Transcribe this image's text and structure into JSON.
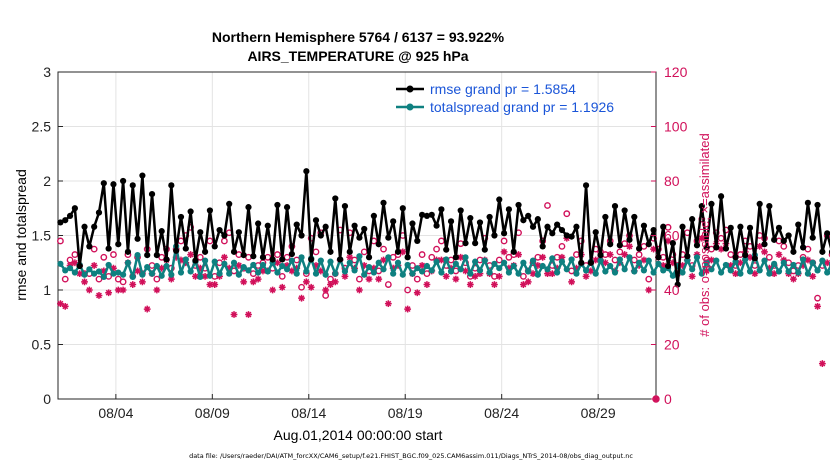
{
  "chart_data": {
    "type": "line",
    "title_line1": "Northern Hemisphere 5764 / 6137 = 93.922%",
    "title_line2": "AIRS_TEMPERATURE @ 925 hPa",
    "xlabel": "Aug.01,2014 00:00:00 start",
    "ylabel_left": "rmse and totalspread",
    "ylabel_right": "# of obs: o=possible; ×=assimilated",
    "ylim_left": [
      0,
      3
    ],
    "ylim_right": [
      0,
      120
    ],
    "xlim_days": [
      1,
      32
    ],
    "yticks_left": [
      "0",
      "0.5",
      "1",
      "1.5",
      "2",
      "2.5",
      "3"
    ],
    "yticks_right": [
      "0",
      "20",
      "40",
      "60",
      "80",
      "100",
      "120"
    ],
    "xticks": [
      {
        "day": 4,
        "label": "08/04"
      },
      {
        "day": 9,
        "label": "08/09"
      },
      {
        "day": 14,
        "label": "08/14"
      },
      {
        "day": 19,
        "label": "08/19"
      },
      {
        "day": 24,
        "label": "08/24"
      },
      {
        "day": 29,
        "label": "08/29"
      }
    ],
    "grid": true,
    "legend_position": "top-right",
    "footer": "data file: /Users/raeder/DAI/ATM_forcXX/CAM6_setup/f.e21.FHIST_BGC.f09_025.CAM6assim.011/Diags_NTrS_2014-08/obs_diag_output.nc",
    "colors": {
      "rmse": "#000000",
      "spread": "#0e8080",
      "obs": "#d1105a",
      "legend_text": "#1a55d8",
      "grid": "#e3e3e3"
    },
    "series": [
      {
        "name": "rmse grand pr = 1.5854",
        "axis": "left",
        "start_day": 1.125,
        "step_days": 0.25,
        "values": [
          1.62,
          1.64,
          1.68,
          1.75,
          1.22,
          1.58,
          1.4,
          1.58,
          1.71,
          1.98,
          1.38,
          1.97,
          1.42,
          2.0,
          1.35,
          1.96,
          1.47,
          2.05,
          1.32,
          1.88,
          1.32,
          1.54,
          1.28,
          1.96,
          1.36,
          1.67,
          1.38,
          1.72,
          1.27,
          1.53,
          1.35,
          1.73,
          1.4,
          1.55,
          1.5,
          1.79,
          1.35,
          1.53,
          1.32,
          1.76,
          1.31,
          1.61,
          1.3,
          1.59,
          1.28,
          1.78,
          1.28,
          1.76,
          1.33,
          1.6,
          1.5,
          2.09,
          1.28,
          1.64,
          1.5,
          1.58,
          1.35,
          1.84,
          1.28,
          1.77,
          1.35,
          1.59,
          1.48,
          1.56,
          1.3,
          1.68,
          1.42,
          1.8,
          1.48,
          1.63,
          1.35,
          1.75,
          1.3,
          1.61,
          1.45,
          1.69,
          1.68,
          1.69,
          1.59,
          1.74,
          1.37,
          1.63,
          1.3,
          1.73,
          1.43,
          1.66,
          1.43,
          1.62,
          1.37,
          1.67,
          1.5,
          1.83,
          1.52,
          1.74,
          1.35,
          1.78,
          1.64,
          1.68,
          1.58,
          1.65,
          1.4,
          1.58,
          1.52,
          1.6,
          1.55,
          1.5,
          1.49,
          1.58,
          1.25,
          1.96,
          1.25,
          1.53,
          1.32,
          1.67,
          1.42,
          1.77,
          1.41,
          1.73,
          1.46,
          1.67,
          1.38,
          1.59,
          1.42,
          1.55,
          1.3,
          1.58,
          1.22,
          1.43,
          1.05,
          1.58,
          1.31,
          1.65,
          1.41,
          1.77,
          1.39,
          1.79,
          1.39,
          1.86,
          1.38,
          1.57,
          1.3,
          1.58,
          1.32,
          1.57,
          1.29,
          1.79,
          1.42,
          1.77,
          1.46,
          1.57,
          1.45,
          1.5,
          1.35,
          1.6,
          1.39,
          1.8,
          1.48,
          1.78,
          1.35,
          1.52,
          1.35,
          1.58,
          1.32,
          1.72,
          1.37,
          1.62,
          1.48,
          1.62,
          1.4,
          1.45,
          1.27,
          1.56,
          1.35,
          1.58,
          1.45,
          1.65,
          1.28,
          1.52,
          1.27,
          1.5,
          1.27,
          1.45,
          1.32,
          1.62,
          1.35,
          1.6,
          1.45,
          1.67,
          1.35,
          1.38,
          1.42,
          1.6,
          1.35,
          1.55,
          1.26,
          1.48,
          1.27,
          1.44,
          1.24,
          1.32,
          1.22,
          1.25
        ]
      },
      {
        "name": "totalspread grand pr = 1.1926",
        "axis": "left",
        "start_day": 1.125,
        "step_days": 0.25,
        "values": [
          1.24,
          1.18,
          1.2,
          1.16,
          1.23,
          1.14,
          1.19,
          1.15,
          1.17,
          1.12,
          1.23,
          1.15,
          1.16,
          1.14,
          1.25,
          1.12,
          1.32,
          1.14,
          1.21,
          1.15,
          1.22,
          1.13,
          1.22,
          1.14,
          1.4,
          1.16,
          1.28,
          1.17,
          1.26,
          1.12,
          1.27,
          1.13,
          1.26,
          1.15,
          1.24,
          1.15,
          1.25,
          1.14,
          1.21,
          1.18,
          1.23,
          1.16,
          1.23,
          1.17,
          1.25,
          1.16,
          1.22,
          1.19,
          1.27,
          1.15,
          1.3,
          1.17,
          1.29,
          1.15,
          1.27,
          1.14,
          1.26,
          1.15,
          1.28,
          1.17,
          1.25,
          1.18,
          1.31,
          1.14,
          1.21,
          1.16,
          1.25,
          1.19,
          1.3,
          1.15,
          1.25,
          1.14,
          1.23,
          1.15,
          1.2,
          1.17,
          1.22,
          1.18,
          1.26,
          1.16,
          1.28,
          1.17,
          1.24,
          1.19,
          1.3,
          1.15,
          1.26,
          1.18,
          1.27,
          1.16,
          1.24,
          1.2,
          1.25,
          1.16,
          1.22,
          1.15,
          1.25,
          1.17,
          1.27,
          1.14,
          1.22,
          1.19,
          1.29,
          1.16,
          1.26,
          1.19,
          1.28,
          1.15,
          1.24,
          1.18,
          1.26,
          1.15,
          1.27,
          1.17,
          1.22,
          1.16,
          1.28,
          1.19,
          1.3,
          1.17,
          1.25,
          1.18,
          1.27,
          1.16,
          1.24,
          1.18,
          1.2,
          1.13,
          1.22,
          1.16,
          1.27,
          1.19,
          1.3,
          1.15,
          1.25,
          1.19,
          1.27,
          1.16,
          1.23,
          1.18,
          1.26,
          1.15,
          1.28,
          1.17,
          1.32,
          1.18,
          1.27,
          1.15,
          1.24,
          1.17,
          1.25,
          1.17,
          1.23,
          1.16,
          1.28,
          1.15,
          1.25,
          1.18,
          1.27,
          1.16,
          1.24,
          1.19,
          1.28,
          1.17,
          1.33,
          1.15,
          1.28,
          1.18,
          1.25,
          1.16,
          1.28,
          1.18,
          1.3,
          1.17,
          1.35,
          1.15,
          1.3,
          1.18,
          1.27,
          1.2,
          1.33,
          1.19,
          1.3,
          1.2,
          1.31,
          1.18,
          1.34,
          1.21,
          1.28,
          1.18,
          1.25,
          1.17,
          1.25,
          1.2,
          1.22,
          1.17
        ]
      },
      {
        "name": "# obs possible",
        "axis": "right",
        "marker": "circle",
        "start_day": 1.125,
        "step_days": 0.25,
        "values": [
          58,
          44,
          51,
          53,
          49,
          46,
          46,
          55,
          44,
          52,
          45,
          53,
          44,
          43,
          53,
          45,
          52,
          46,
          55,
          49,
          44,
          52,
          55,
          48,
          55,
          58,
          60,
          63,
          49,
          52,
          48,
          58,
          45,
          50,
          58,
          61,
          47,
          53,
          48,
          52,
          46,
          49,
          50,
          52,
          48,
          53,
          45,
          52,
          56,
          51,
          41,
          46,
          59,
          54,
          61,
          38,
          44,
          46,
          62,
          48,
          61,
          51,
          44,
          54,
          47,
          58,
          47,
          55,
          42,
          52,
          53,
          60,
          40,
          49,
          44,
          53,
          46,
          52,
          55,
          58,
          49,
          51,
          47,
          57,
          50,
          45,
          48,
          51,
          59,
          49,
          45,
          51,
          58,
          52,
          53,
          61,
          45,
          47,
          50,
          52,
          58,
          71,
          49,
          52,
          56,
          68,
          47,
          53,
          58,
          49,
          50,
          55,
          54,
          53,
          58,
          51,
          54,
          57,
          60,
          51,
          53,
          56,
          44,
          59,
          55,
          52,
          63,
          53,
          49,
          53,
          61,
          49,
          58,
          66,
          51,
          55,
          61,
          59,
          62,
          53,
          49,
          53,
          58,
          56,
          49,
          60,
          59,
          52,
          49,
          58,
          56,
          50,
          47,
          49,
          52,
          55,
          50,
          37,
          49,
          60,
          53,
          44,
          59,
          58,
          60,
          49,
          63,
          58,
          64,
          52,
          57,
          56,
          65,
          50,
          58,
          49,
          65,
          56,
          60,
          61,
          59,
          45,
          60,
          55,
          64,
          63,
          59,
          60,
          61,
          57,
          60,
          61,
          55,
          59,
          62,
          52,
          58,
          57,
          60,
          57
        ]
      },
      {
        "name": "# obs assimilated",
        "axis": "right",
        "marker": "asterisk",
        "start_day": 1.125,
        "step_days": 0.25,
        "values": [
          35,
          34,
          49,
          50,
          46,
          43,
          40,
          49,
          38,
          47,
          39,
          48,
          40,
          40,
          50,
          42,
          47,
          43,
          33,
          46,
          40,
          48,
          51,
          44,
          52,
          51,
          50,
          53,
          45,
          48,
          45,
          42,
          42,
          45,
          52,
          48,
          31,
          49,
          43,
          31,
          43,
          44,
          47,
          47,
          40,
          50,
          41,
          49,
          47,
          48,
          37,
          43,
          41,
          49,
          47,
          40,
          42,
          43,
          51,
          45,
          52,
          48,
          40,
          49,
          44,
          48,
          44,
          51,
          35,
          48,
          49,
          54,
          33,
          46,
          39,
          49,
          42,
          47,
          51,
          51,
          45,
          48,
          44,
          52,
          47,
          42,
          45,
          46,
          51,
          46,
          42,
          45,
          54,
          48,
          49,
          53,
          42,
          43,
          46,
          49,
          52,
          46,
          46,
          48,
          52,
          59,
          43,
          48,
          53,
          45,
          47,
          51,
          51,
          50,
          53,
          47,
          50,
          53,
          56,
          47,
          49,
          51,
          40,
          55,
          52,
          49,
          58,
          50,
          46,
          49,
          51,
          45,
          53,
          59,
          47,
          51,
          57,
          55,
          57,
          49,
          46,
          50,
          54,
          52,
          46,
          56,
          54,
          48,
          46,
          53,
          51,
          46,
          44,
          46,
          49,
          51,
          45,
          34,
          13,
          50,
          49,
          41,
          54,
          53,
          55,
          46,
          59,
          54,
          53,
          48,
          53,
          51,
          55,
          46,
          54,
          45,
          58,
          52,
          55,
          57,
          52,
          41,
          55,
          51,
          58,
          57,
          53,
          55,
          55,
          53,
          55,
          56,
          51,
          54,
          56,
          48,
          53,
          52,
          55,
          53
        ]
      }
    ]
  }
}
